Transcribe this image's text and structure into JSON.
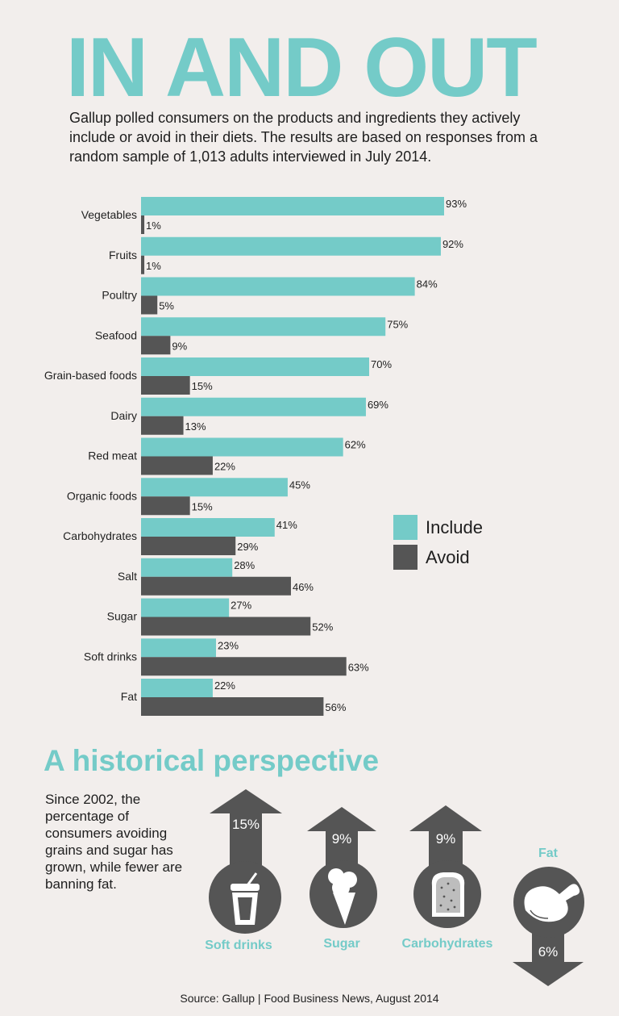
{
  "title": "IN AND OUT",
  "intro": "Gallup polled consumers on the products and ingredients they actively include or avoid in their diets. The results are based on responses from a random sample of 1,013 adults interviewed in July 2014.",
  "colors": {
    "include": "#74cbc8",
    "avoid": "#555555",
    "accent": "#74cbc8",
    "background": "#f2eeec"
  },
  "chart_data": {
    "type": "bar",
    "orientation": "horizontal",
    "categories": [
      "Vegetables",
      "Fruits",
      "Poultry",
      "Seafood",
      "Grain-based foods",
      "Dairy",
      "Red meat",
      "Organic foods",
      "Carbohydrates",
      "Salt",
      "Sugar",
      "Soft drinks",
      "Fat"
    ],
    "series": [
      {
        "name": "Include",
        "values": [
          93,
          92,
          84,
          75,
          70,
          69,
          62,
          45,
          41,
          28,
          27,
          23,
          22
        ],
        "labels": [
          "93%",
          "92%",
          "84%",
          "75%",
          "70%",
          "69%",
          "62%",
          "45%",
          "41%",
          "28%",
          "27%",
          "23%",
          "22%"
        ]
      },
      {
        "name": "Avoid",
        "values": [
          1,
          1,
          5,
          9,
          15,
          13,
          22,
          15,
          29,
          46,
          52,
          63,
          56
        ],
        "labels": [
          "1%",
          "1%",
          "5%",
          "9%",
          "15%",
          "13%",
          "22%",
          "15%",
          "29%",
          "46%",
          "52%",
          "63%",
          "56%"
        ]
      }
    ],
    "unit": "%",
    "xlim": [
      0,
      100
    ],
    "grid": false,
    "legend": "right"
  },
  "legend": {
    "include": "Include",
    "avoid": "Avoid"
  },
  "historical": {
    "title": "A historical perspective",
    "text": "Since 2002, the percentage of consumers avoiding grains and sugar has grown, while fewer are banning fat.",
    "items": [
      {
        "label": "Soft drinks",
        "change": "15%",
        "direction": "up",
        "icon": "soft-drink-cup-icon"
      },
      {
        "label": "Sugar",
        "change": "9%",
        "direction": "up",
        "icon": "ice-cream-cone-icon"
      },
      {
        "label": "Carbohydrates",
        "change": "9%",
        "direction": "up",
        "icon": "bread-slice-icon"
      },
      {
        "label": "Fat",
        "change": "6%",
        "direction": "down",
        "icon": "chicken-leg-icon"
      }
    ]
  },
  "source": "Source: Gallup | Food Business News, August 2014"
}
